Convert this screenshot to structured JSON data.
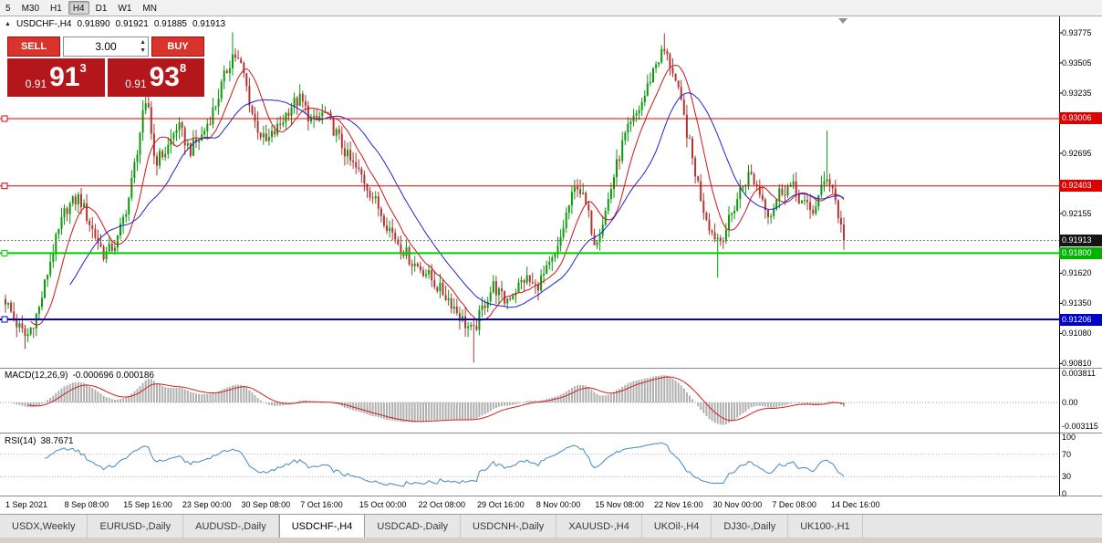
{
  "timeframe_toolbar": {
    "buttons": [
      "5",
      "M30",
      "H1",
      "H4",
      "D1",
      "W1",
      "MN"
    ],
    "active": "H4"
  },
  "chart_header": {
    "collapse_icon": "▲",
    "symbol": "USDCHF-,H4",
    "open": "0.91890",
    "high": "0.91921",
    "low": "0.91885",
    "close": "0.91913"
  },
  "trade_panel": {
    "sell_label": "SELL",
    "buy_label": "BUY",
    "lot_value": "3.00",
    "sell_price": {
      "small": "0.91",
      "big": "91",
      "sup": "3"
    },
    "buy_price": {
      "small": "0.91",
      "big": "93",
      "sup": "8"
    },
    "colors": {
      "button": "#d8342c",
      "box": "#b3161b"
    }
  },
  "price_axis": {
    "ticks": [
      "0.93775",
      "0.93505",
      "0.93235",
      "0.92695",
      "0.92155",
      "0.91620",
      "0.91350",
      "0.91080",
      "0.90810"
    ],
    "badges": [
      {
        "value": "0.93006",
        "color": "#dd0000",
        "name": "resistance-upper-badge"
      },
      {
        "value": "0.92403",
        "color": "#dd0000",
        "name": "resistance-lower-badge"
      },
      {
        "value": "0.91913",
        "color": "#151515",
        "name": "current-price-badge"
      },
      {
        "value": "0.91800",
        "color": "#00b400",
        "name": "support-green-badge"
      },
      {
        "value": "0.91206",
        "color": "#0000c8",
        "name": "support-blue-badge"
      }
    ]
  },
  "indicators": {
    "macd": {
      "label": "MACD(12,26,9)",
      "values": "-0.000696 0.000186",
      "axis_labels": [
        "0.003811",
        "0.00",
        "-0.003115"
      ]
    },
    "rsi": {
      "label": "RSI(14)",
      "value": "38.7671",
      "axis_labels": [
        "100",
        "70",
        "30",
        "0"
      ]
    }
  },
  "time_axis": [
    "1 Sep 2021",
    "8 Sep 08:00",
    "15 Sep 16:00",
    "23 Sep 00:00",
    "30 Sep 08:00",
    "7 Oct 16:00",
    "15 Oct 00:00",
    "22 Oct 08:00",
    "29 Oct 16:00",
    "8 Nov 00:00",
    "15 Nov 08:00",
    "22 Nov 16:00",
    "30 Nov 00:00",
    "7 Dec 08:00",
    "14 Dec 16:00"
  ],
  "tabs": {
    "items": [
      "USDX,Weekly",
      "EURUSD-,Daily",
      "AUDUSD-,Daily",
      "USDCHF-,H4",
      "USDCAD-,Daily",
      "USDCNH-,Daily",
      "XAUUSD-,H4",
      "UKOil-,H4",
      "DJ30-,Daily",
      "UK100-,H1"
    ],
    "active": "USDCHF-,H4"
  },
  "chart_data": {
    "type": "candlestick",
    "symbol": "USDCHF-",
    "timeframe": "H4",
    "last_bar": {
      "open": 0.9189,
      "high": 0.91921,
      "low": 0.91885,
      "close": 0.91913
    },
    "price_axis_range": {
      "top": 0.93922,
      "bottom": 0.90797
    },
    "visible_range": {
      "start": "1 Sep 2021",
      "end": "14 Dec 2021"
    },
    "candle_count": 300,
    "horizontal_levels": [
      {
        "price": 0.93006,
        "color": "#dd0000",
        "width": 1
      },
      {
        "price": 0.92403,
        "color": "#dd0000",
        "width": 1
      },
      {
        "price": 0.918,
        "color": "#00cc00",
        "width": 2
      },
      {
        "price": 0.91206,
        "color": "#0000cc",
        "width": 2
      }
    ],
    "current_price": 0.91913,
    "close_path_anchors": [
      [
        0.0,
        0.9138
      ],
      [
        0.012,
        0.9118
      ],
      [
        0.025,
        0.9104
      ],
      [
        0.04,
        0.913
      ],
      [
        0.055,
        0.9178
      ],
      [
        0.072,
        0.922
      ],
      [
        0.088,
        0.923
      ],
      [
        0.103,
        0.9202
      ],
      [
        0.118,
        0.9178
      ],
      [
        0.133,
        0.919
      ],
      [
        0.148,
        0.9232
      ],
      [
        0.163,
        0.93
      ],
      [
        0.17,
        0.9315
      ],
      [
        0.178,
        0.9262
      ],
      [
        0.192,
        0.9272
      ],
      [
        0.205,
        0.9295
      ],
      [
        0.22,
        0.9272
      ],
      [
        0.235,
        0.9286
      ],
      [
        0.25,
        0.9312
      ],
      [
        0.262,
        0.934
      ],
      [
        0.272,
        0.936
      ],
      [
        0.283,
        0.9344
      ],
      [
        0.296,
        0.93
      ],
      [
        0.31,
        0.9278
      ],
      [
        0.325,
        0.9292
      ],
      [
        0.34,
        0.9312
      ],
      [
        0.352,
        0.9318
      ],
      [
        0.366,
        0.9296
      ],
      [
        0.38,
        0.9306
      ],
      [
        0.394,
        0.9288
      ],
      [
        0.41,
        0.9263
      ],
      [
        0.425,
        0.9249
      ],
      [
        0.44,
        0.9228
      ],
      [
        0.455,
        0.9206
      ],
      [
        0.47,
        0.9188
      ],
      [
        0.485,
        0.9172
      ],
      [
        0.5,
        0.9164
      ],
      [
        0.515,
        0.915
      ],
      [
        0.53,
        0.9138
      ],
      [
        0.545,
        0.912
      ],
      [
        0.558,
        0.9108
      ],
      [
        0.57,
        0.9133
      ],
      [
        0.582,
        0.9151
      ],
      [
        0.595,
        0.9137
      ],
      [
        0.608,
        0.9147
      ],
      [
        0.62,
        0.9158
      ],
      [
        0.632,
        0.9149
      ],
      [
        0.645,
        0.9163
      ],
      [
        0.658,
        0.918
      ],
      [
        0.67,
        0.9218
      ],
      [
        0.682,
        0.9243
      ],
      [
        0.693,
        0.9221
      ],
      [
        0.703,
        0.919
      ],
      [
        0.714,
        0.9212
      ],
      [
        0.726,
        0.925
      ],
      [
        0.738,
        0.9283
      ],
      [
        0.75,
        0.93
      ],
      [
        0.762,
        0.932
      ],
      [
        0.774,
        0.9348
      ],
      [
        0.785,
        0.9362
      ],
      [
        0.796,
        0.9344
      ],
      [
        0.808,
        0.9306
      ],
      [
        0.82,
        0.9262
      ],
      [
        0.832,
        0.9222
      ],
      [
        0.843,
        0.9198
      ],
      [
        0.853,
        0.9192
      ],
      [
        0.864,
        0.921
      ],
      [
        0.876,
        0.9236
      ],
      [
        0.888,
        0.9252
      ],
      [
        0.9,
        0.9234
      ],
      [
        0.912,
        0.9214
      ],
      [
        0.924,
        0.9236
      ],
      [
        0.938,
        0.924
      ],
      [
        0.95,
        0.9226
      ],
      [
        0.962,
        0.9216
      ],
      [
        0.972,
        0.9234
      ],
      [
        0.98,
        0.925
      ],
      [
        0.987,
        0.9238
      ],
      [
        0.994,
        0.9212
      ],
      [
        1.0,
        0.91913
      ]
    ],
    "wick_extremes": [
      {
        "t": 0.025,
        "low": 0.9094
      },
      {
        "t": 0.17,
        "high": 0.9336
      },
      {
        "t": 0.272,
        "high": 0.9378
      },
      {
        "t": 0.558,
        "low": 0.9082
      },
      {
        "t": 0.785,
        "high": 0.9377
      },
      {
        "t": 0.85,
        "low": 0.9158
      },
      {
        "t": 0.981,
        "high": 0.929
      }
    ],
    "moving_averages": [
      {
        "period": 10,
        "color": "#d01414"
      },
      {
        "period": 24,
        "color": "#2222d0"
      }
    ],
    "macd": {
      "fast": 12,
      "slow": 26,
      "signal": 9,
      "current": -0.000696,
      "current_signal": 0.000186,
      "axis_max": 0.003811,
      "axis_min": -0.003115
    },
    "rsi": {
      "period": 14,
      "current": 38.7671,
      "levels": [
        70,
        30
      ]
    },
    "colors": {
      "up": "#0a9a0a",
      "down": "#b23531",
      "macd_hist": "#b0b0b0",
      "macd_signal": "#d02020",
      "rsi_line": "#4187c7"
    }
  }
}
